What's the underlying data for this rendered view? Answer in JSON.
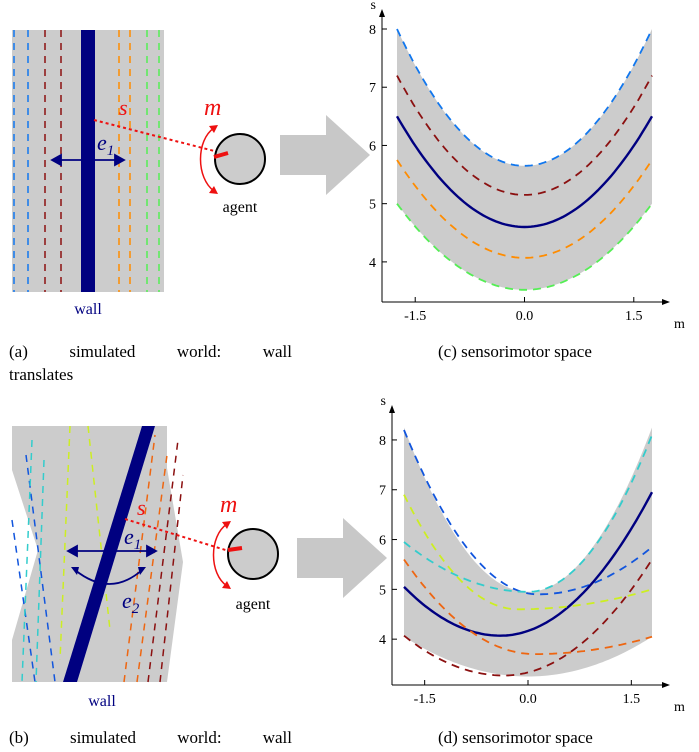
{
  "panel_a": {
    "wall_label": "wall",
    "sensor_symbol": "s",
    "motor_symbol": "m",
    "motion_label": "e",
    "motion_subscript": "1",
    "agent_label": "agent",
    "caption_line1": "(a)  simulated  world:  wall",
    "caption_line2": "translates"
  },
  "panel_b": {
    "wall_label": "wall",
    "sensor_symbol": "s",
    "motor_symbol": "m",
    "motion1_label": "e",
    "motion1_subscript": "1",
    "motion2_label": "e",
    "motion2_subscript": "2",
    "agent_label": "agent",
    "caption_line1": "(b)  simulated  world:  wall"
  },
  "panel_c": {
    "caption": "(c) sensorimotor space",
    "y_axis_label": "s",
    "x_axis_label": "m",
    "y_ticks": [
      "4",
      "5",
      "6",
      "7",
      "8"
    ],
    "x_ticks": [
      "-1.5",
      "0.0",
      "1.5"
    ]
  },
  "panel_d": {
    "caption": "(d) sensorimotor space",
    "y_axis_label": "s",
    "x_axis_label": "m",
    "y_ticks": [
      "4",
      "5",
      "6",
      "7",
      "8"
    ],
    "x_ticks": [
      "-1.5",
      "0.0",
      "1.5"
    ]
  },
  "colors": {
    "background_gray": "#cccccc",
    "wall": "#000080",
    "sensor_ray": "#ee1111",
    "arrow_gray": "#c8c8c8"
  },
  "chart_data": [
    {
      "id": "c",
      "type": "line",
      "xlim": [
        -1.75,
        1.75
      ],
      "ylim": [
        3.5,
        8.0
      ],
      "band": {
        "upper": {
          "min": 5.65,
          "edge": 8.0
        },
        "lower": {
          "min": 3.52,
          "edge": 5.0
        }
      },
      "series": [
        {
          "style": "dashed",
          "color": "#1177ee",
          "min_x": 0.0,
          "min_y": 5.65,
          "edge_y": 8.0
        },
        {
          "style": "dashed",
          "color": "#8b1010",
          "min_x": 0.0,
          "min_y": 5.15,
          "edge_y": 7.2
        },
        {
          "style": "solid",
          "color": "#000080",
          "min_x": 0.0,
          "min_y": 4.6,
          "edge_y": 6.5
        },
        {
          "style": "dashed",
          "color": "#ff8c00",
          "min_x": 0.0,
          "min_y": 4.07,
          "edge_y": 5.75
        },
        {
          "style": "dashed",
          "color": "#55ee55",
          "min_x": 0.0,
          "min_y": 3.52,
          "edge_y": 5.0
        }
      ]
    },
    {
      "id": "d",
      "type": "line",
      "xlim": [
        -1.8,
        1.8
      ],
      "ylim": [
        3.2,
        8.3
      ],
      "band": {
        "upper": {
          "min": 4.95,
          "edge": 8.25
        },
        "lower": {
          "min": 3.25,
          "edge": 4.05
        }
      },
      "series": [
        {
          "style": "dashed",
          "color": "#1155dd",
          "min_x": 0.15,
          "min_y": 4.9,
          "left_y": 8.2,
          "right_y": 5.85
        },
        {
          "style": "dashed",
          "color": "#33cccc",
          "min_x": 0.0,
          "min_y": 4.95,
          "left_y": 5.95,
          "right_y": 8.1
        },
        {
          "style": "solid",
          "color": "#000080",
          "min_x": -0.4,
          "min_y": 4.07,
          "left_y": 5.05,
          "right_y": 6.95
        },
        {
          "style": "dashed",
          "color": "#ccee22",
          "min_x": -0.15,
          "min_y": 4.6,
          "left_y": 6.9,
          "right_y": 5.0
        },
        {
          "style": "dashed",
          "color": "#ee6611",
          "min_x": 0.1,
          "min_y": 3.7,
          "left_y": 5.6,
          "right_y": 4.05
        },
        {
          "style": "dashed",
          "color": "#8b1010",
          "min_x": -0.35,
          "min_y": 3.27,
          "left_y": 4.07,
          "right_y": 5.6
        }
      ]
    }
  ]
}
